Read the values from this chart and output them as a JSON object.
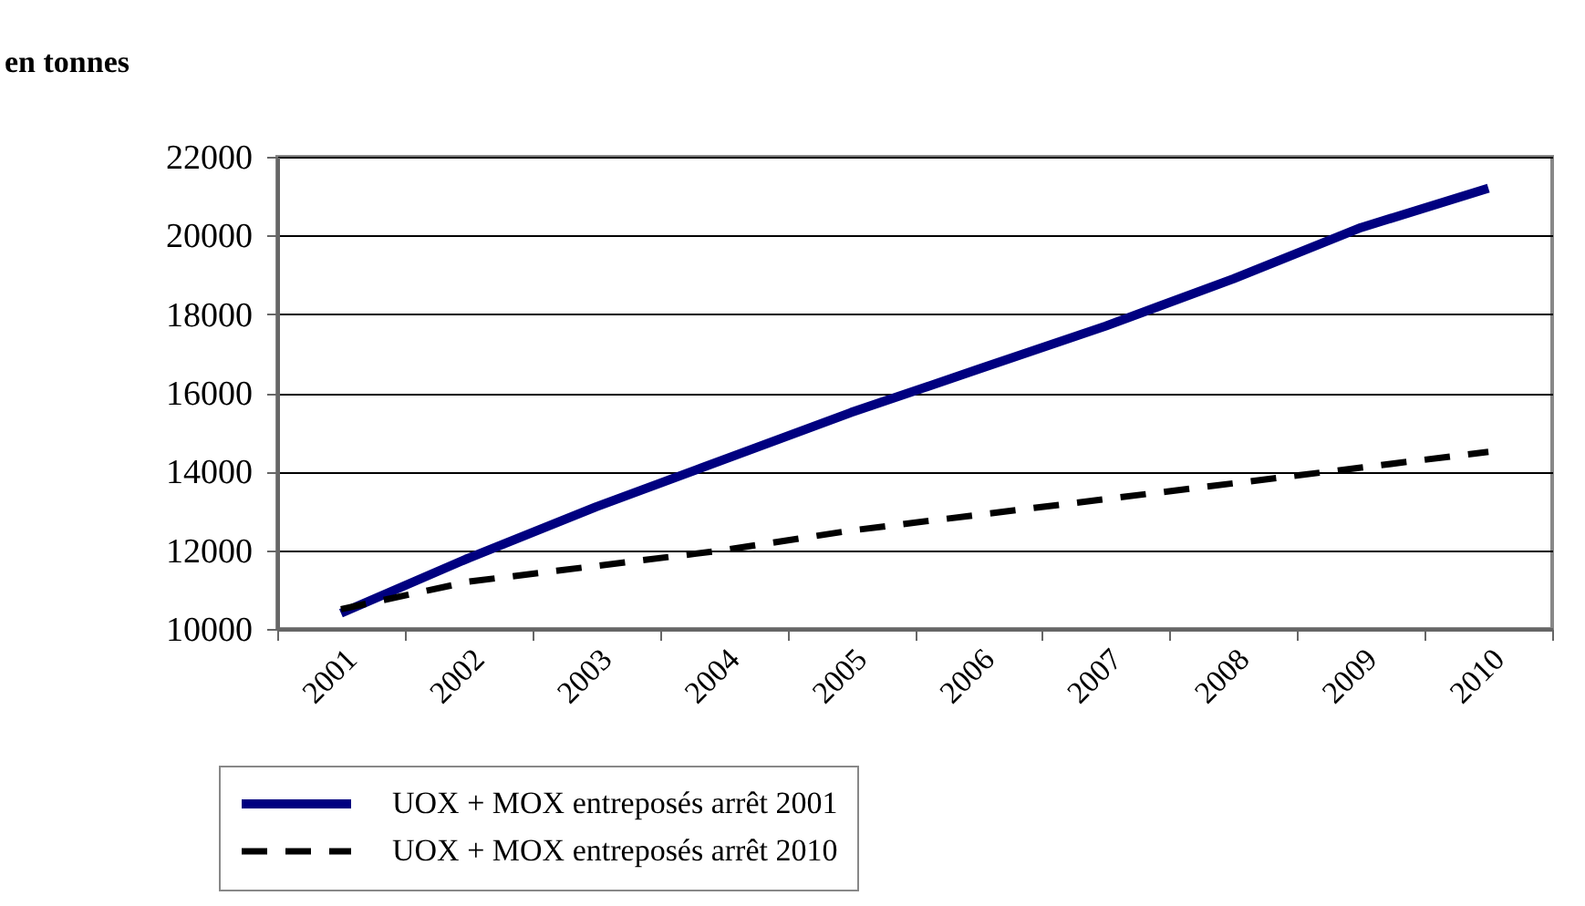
{
  "chart_data": {
    "type": "line",
    "ylabel": "en tonnes",
    "categories": [
      "2001",
      "2002",
      "2003",
      "2004",
      "2005",
      "2006",
      "2007",
      "2008",
      "2009",
      "2010"
    ],
    "series": [
      {
        "name": "UOX + MOX entreposés arrêt 2001",
        "color": "#000080",
        "line_style": "solid",
        "values": [
          10400,
          11800,
          13100,
          14300,
          15500,
          16600,
          17700,
          18900,
          20200,
          21200
        ]
      },
      {
        "name": "UOX + MOX entreposés arrêt 2010",
        "color": "#000000",
        "line_style": "dashed",
        "values": [
          10500,
          11200,
          11600,
          12000,
          12500,
          12900,
          13300,
          13700,
          14100,
          14500
        ]
      }
    ],
    "ylim": [
      10000,
      22000
    ],
    "yticks": [
      10000,
      12000,
      14000,
      16000,
      18000,
      20000,
      22000
    ],
    "grid": "y",
    "legend": "bottom",
    "marker": "none"
  }
}
